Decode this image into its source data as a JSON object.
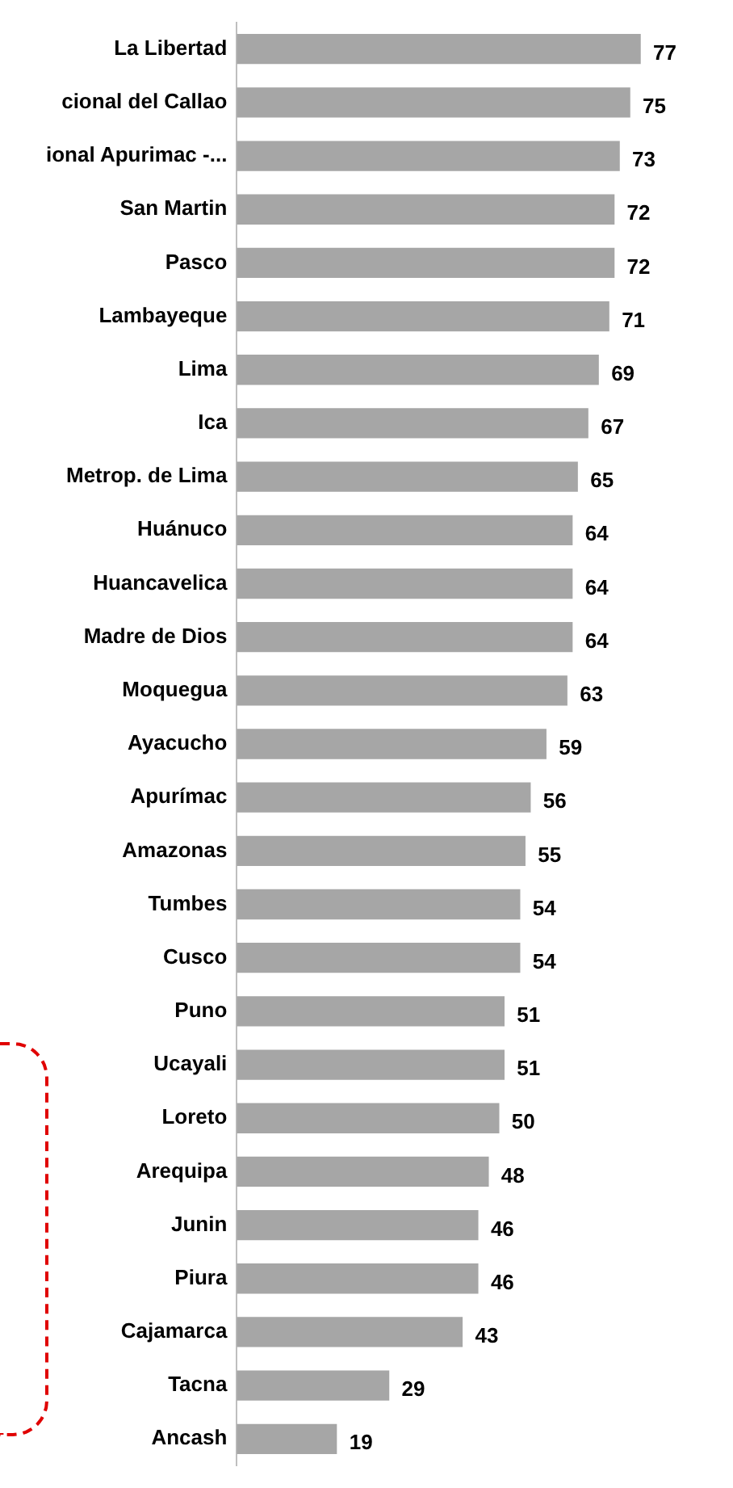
{
  "chart_data": {
    "type": "bar",
    "orientation": "horizontal",
    "categories": [
      "La Libertad",
      "cional del Callao",
      "ional Apurimac -...",
      "San Martin",
      "Pasco",
      "Lambayeque",
      "Lima",
      "Ica",
      "Metrop. de Lima",
      "Huánuco",
      "Huancavelica",
      "Madre de Dios",
      "Moquegua",
      "Ayacucho",
      "Apurímac",
      "Amazonas",
      "Tumbes",
      "Cusco",
      "Puno",
      "Ucayali",
      "Loreto",
      "Arequipa",
      "Junin",
      "Piura",
      "Cajamarca",
      "Tacna",
      "Ancash"
    ],
    "values": [
      77,
      75,
      73,
      72,
      72,
      71,
      69,
      67,
      65,
      64,
      64,
      64,
      63,
      59,
      56,
      55,
      54,
      54,
      51,
      51,
      50,
      48,
      46,
      46,
      43,
      29,
      19
    ],
    "color": "#a6a6a6",
    "data_labels": true,
    "legend": false
  }
}
